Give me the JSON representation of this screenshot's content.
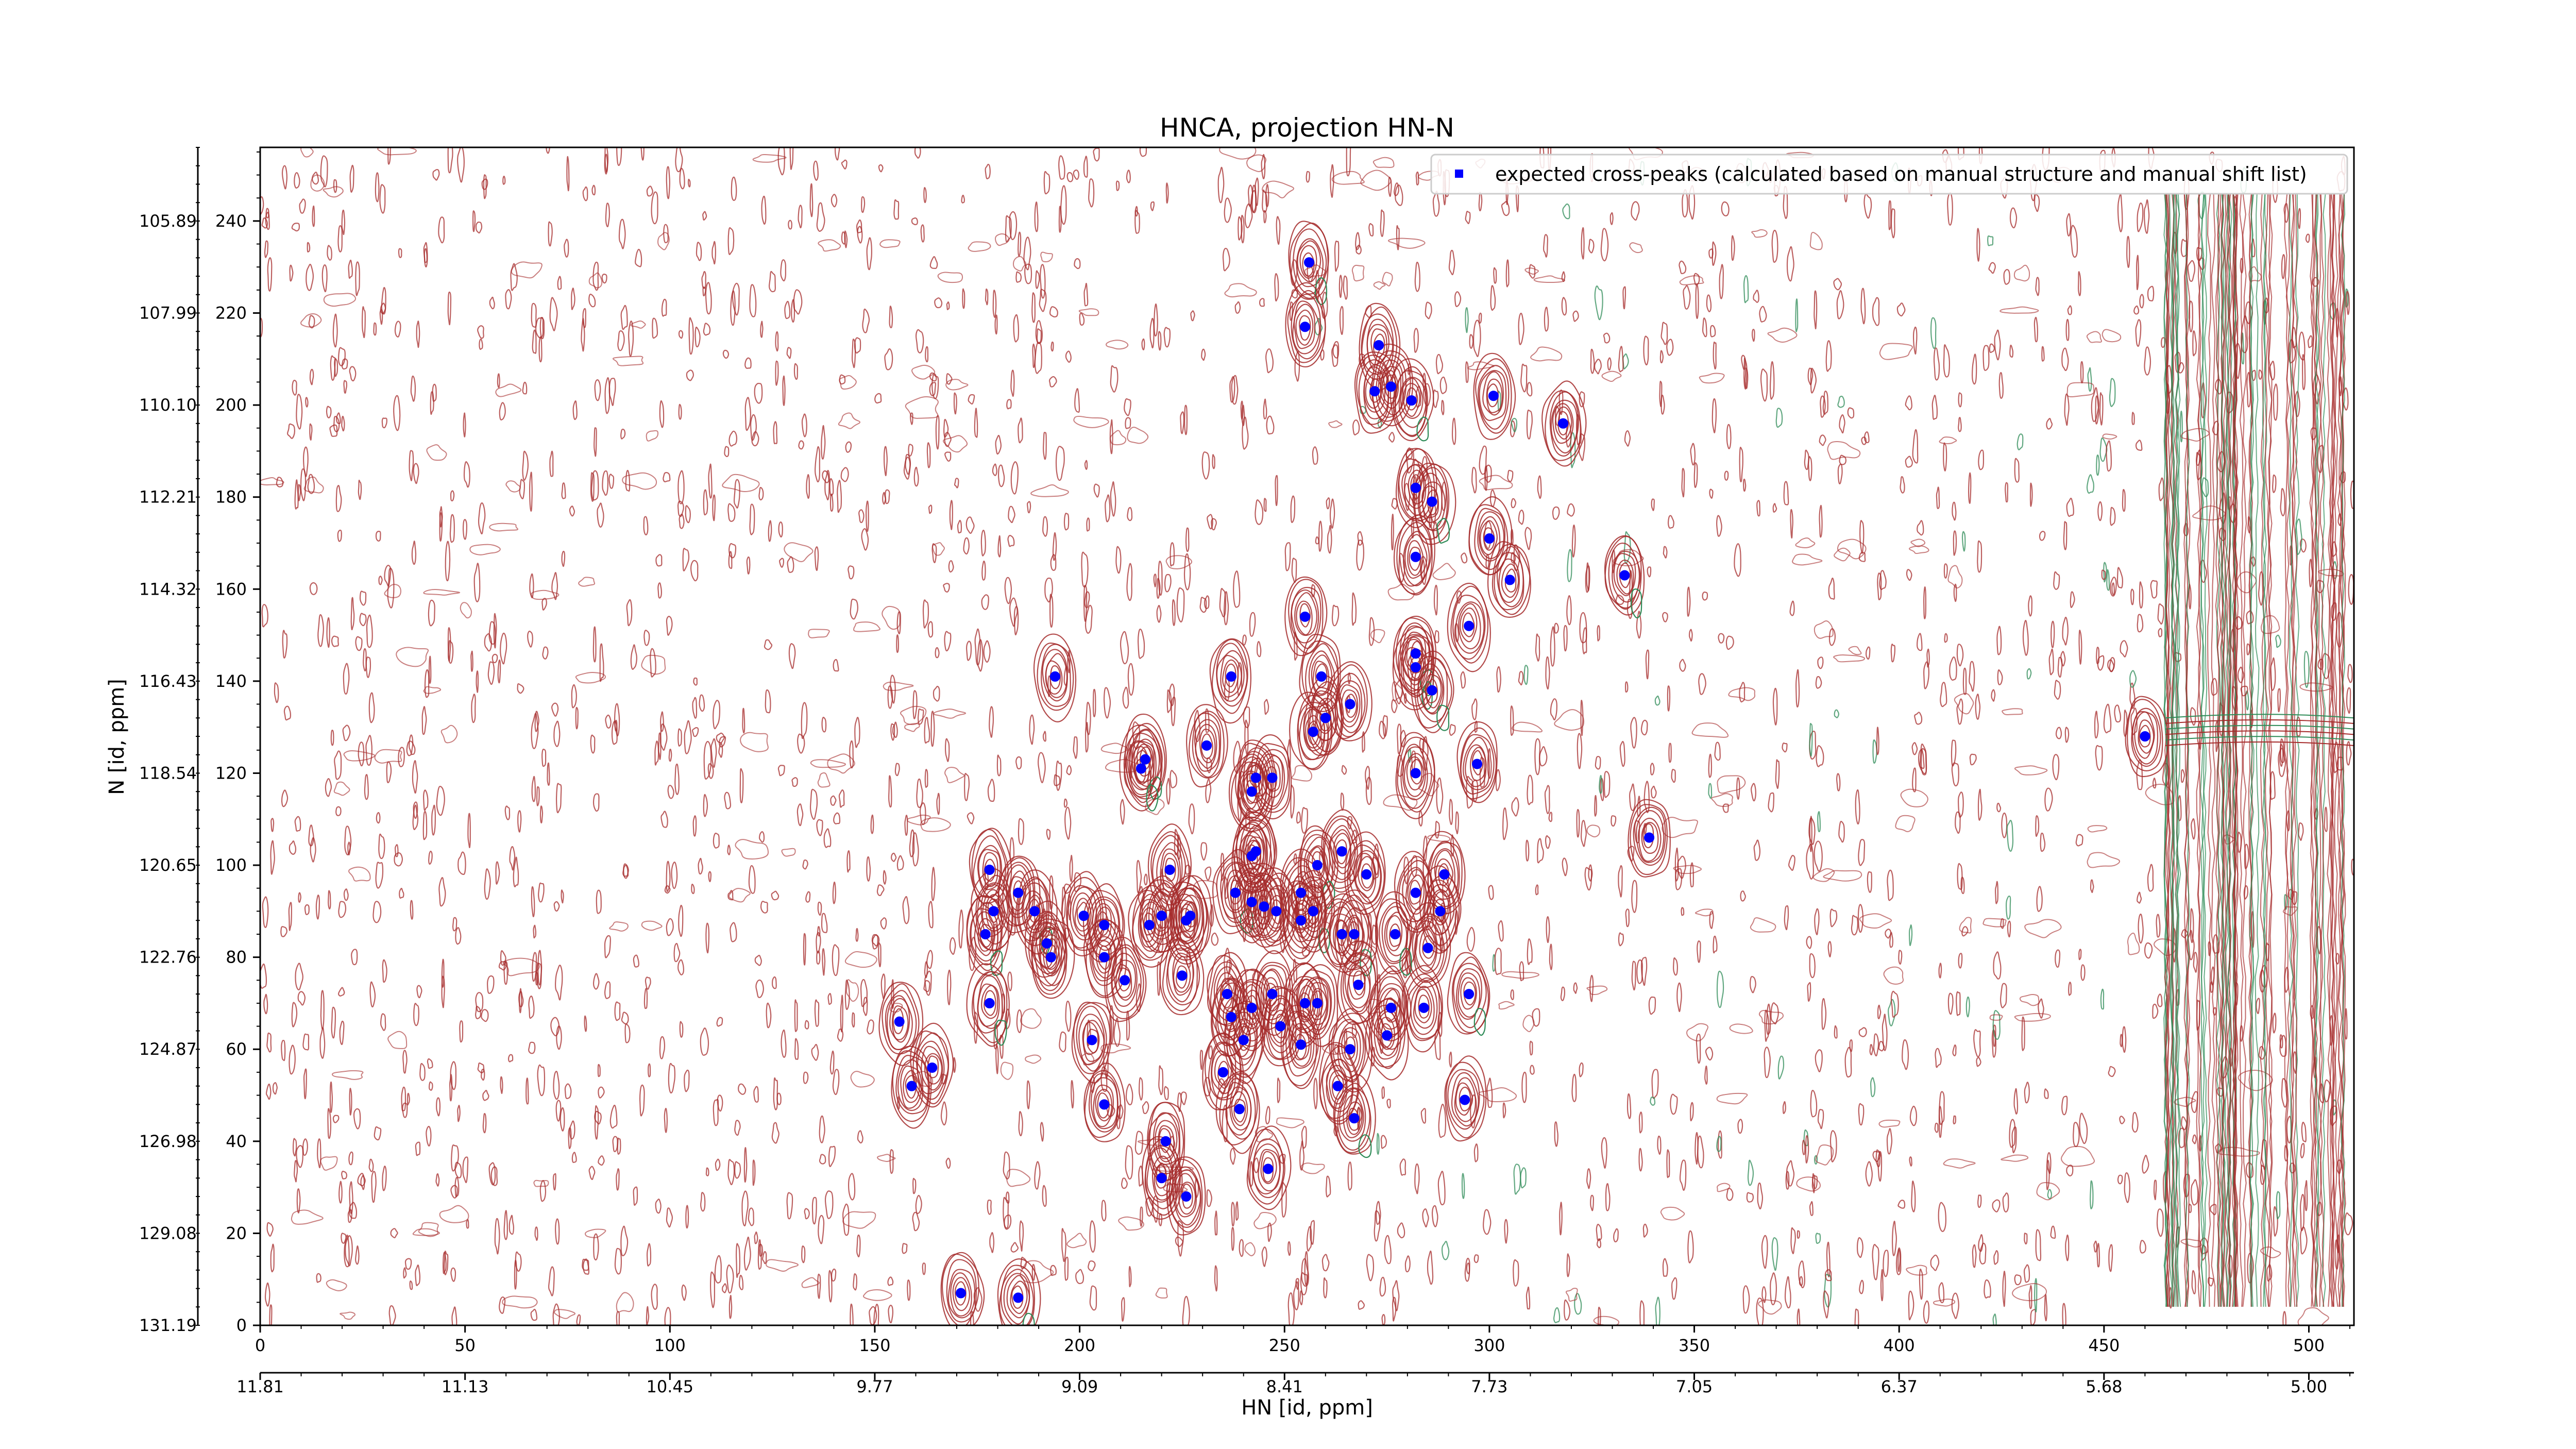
{
  "chart_data": {
    "type": "scatter",
    "title": "HNCA, projection HN-N",
    "xlabel": "HN [id, ppm]",
    "ylabel": "N [id, ppm]",
    "xlim": [
      0,
      511
    ],
    "ylim": [
      0,
      256
    ],
    "x_ticks": [
      0,
      50,
      100,
      150,
      200,
      250,
      300,
      350,
      400,
      450,
      500
    ],
    "y_ticks": [
      0,
      20,
      40,
      60,
      80,
      100,
      120,
      140,
      160,
      180,
      200,
      220,
      240
    ],
    "y_ppm_labels": [
      "131.19",
      "129.08",
      "126.98",
      "124.87",
      "122.76",
      "120.65",
      "118.54",
      "116.43",
      "114.32",
      "112.21",
      "110.10",
      "107.99",
      "105.89"
    ],
    "x_ppm_labels": [
      "11.81",
      "11.13",
      "10.45",
      "9.77",
      "9.09",
      "8.41",
      "7.73",
      "7.05",
      "6.37",
      "5.68",
      "5.00"
    ],
    "grid": false,
    "legend_position": "top-right",
    "legend_label": "expected cross-peaks (calculated based on manual structure and manual shift list)",
    "colors": {
      "peak_marker": "#0000ff",
      "positive_contour": "#a52a2a",
      "negative_contour": "#2e8b57"
    },
    "series": [
      {
        "name": "expected cross-peaks (calculated based on manual structure and manual shift list)",
        "points": [
          [
            256,
            231
          ],
          [
            255,
            217
          ],
          [
            273,
            213
          ],
          [
            272,
            203
          ],
          [
            276,
            204
          ],
          [
            281,
            201
          ],
          [
            301,
            202
          ],
          [
            318,
            196
          ],
          [
            282,
            182
          ],
          [
            286,
            179
          ],
          [
            282,
            167
          ],
          [
            300,
            171
          ],
          [
            305,
            162
          ],
          [
            333,
            163
          ],
          [
            255,
            154
          ],
          [
            295,
            152
          ],
          [
            282,
            146
          ],
          [
            282,
            143
          ],
          [
            286,
            138
          ],
          [
            194,
            141
          ],
          [
            237,
            141
          ],
          [
            259,
            141
          ],
          [
            266,
            135
          ],
          [
            260,
            132
          ],
          [
            257,
            129
          ],
          [
            231,
            126
          ],
          [
            216,
            123
          ],
          [
            215,
            121
          ],
          [
            282,
            120
          ],
          [
            297,
            122
          ],
          [
            243,
            119
          ],
          [
            247,
            119
          ],
          [
            242,
            116
          ],
          [
            339,
            106
          ],
          [
            243,
            103
          ],
          [
            242,
            102
          ],
          [
            264,
            103
          ],
          [
            178,
            99
          ],
          [
            222,
            99
          ],
          [
            258,
            100
          ],
          [
            270,
            98
          ],
          [
            289,
            98
          ],
          [
            185,
            94
          ],
          [
            238,
            94
          ],
          [
            242,
            92
          ],
          [
            245,
            91
          ],
          [
            254,
            94
          ],
          [
            226,
            88
          ],
          [
            227,
            89
          ],
          [
            282,
            94
          ],
          [
            179,
            90
          ],
          [
            189,
            90
          ],
          [
            220,
            89
          ],
          [
            217,
            87
          ],
          [
            201,
            89
          ],
          [
            206,
            87
          ],
          [
            248,
            90
          ],
          [
            257,
            90
          ],
          [
            254,
            88
          ],
          [
            192,
            83
          ],
          [
            177,
            85
          ],
          [
            267,
            85
          ],
          [
            264,
            85
          ],
          [
            277,
            85
          ],
          [
            193,
            80
          ],
          [
            206,
            80
          ],
          [
            211,
            75
          ],
          [
            225,
            76
          ],
          [
            285,
            82
          ],
          [
            288,
            90
          ],
          [
            178,
            70
          ],
          [
            236,
            72
          ],
          [
            242,
            69
          ],
          [
            247,
            72
          ],
          [
            255,
            70
          ],
          [
            258,
            70
          ],
          [
            268,
            74
          ],
          [
            276,
            69
          ],
          [
            284,
            69
          ],
          [
            295,
            72
          ],
          [
            237,
            67
          ],
          [
            240,
            62
          ],
          [
            249,
            65
          ],
          [
            254,
            61
          ],
          [
            156,
            66
          ],
          [
            164,
            56
          ],
          [
            159,
            52
          ],
          [
            203,
            62
          ],
          [
            266,
            60
          ],
          [
            275,
            63
          ],
          [
            235,
            55
          ],
          [
            263,
            52
          ],
          [
            267,
            45
          ],
          [
            206,
            48
          ],
          [
            239,
            47
          ],
          [
            294,
            49
          ],
          [
            221,
            40
          ],
          [
            220,
            32
          ],
          [
            226,
            28
          ],
          [
            246,
            34
          ],
          [
            171,
            7
          ],
          [
            185,
            6
          ],
          [
            460,
            128
          ]
        ]
      }
    ]
  }
}
